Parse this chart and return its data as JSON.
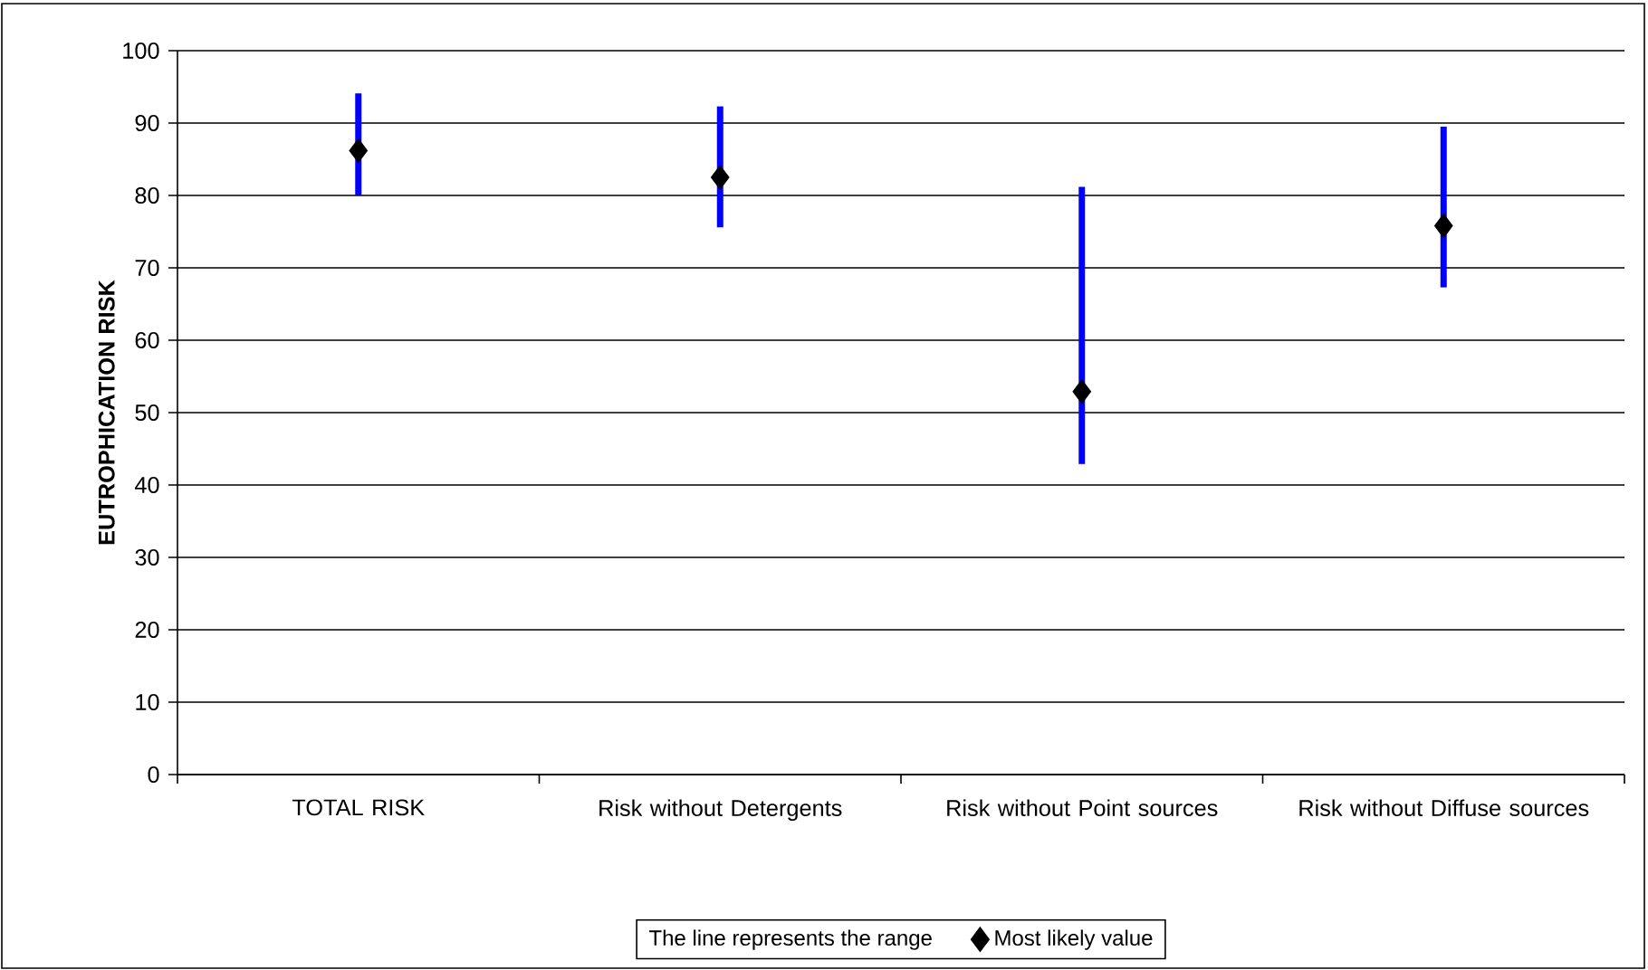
{
  "chart_data": {
    "type": "scatter",
    "ylabel": "EUTROPHICATION RISK",
    "categories": [
      "TOTAL RISK",
      "Risk without Detergents",
      "Risk without Point sources",
      "Risk without Diffuse sources"
    ],
    "series": [
      {
        "name": "Most likely value",
        "color": "#000000",
        "values": [
          86.2,
          82.5,
          52.9,
          75.8
        ],
        "errors": [
          [
            80,
            94.1
          ],
          [
            75.6,
            92.3
          ],
          [
            42.9,
            81.2
          ],
          [
            67.3,
            89.5
          ]
        ]
      }
    ],
    "legend_title": "The line represents the range",
    "ylim": [
      0,
      100
    ],
    "yticks": [
      0,
      10,
      20,
      30,
      40,
      50,
      60,
      70,
      80,
      90,
      100
    ],
    "grid": "y",
    "legend": "bottom",
    "marker": "diamond"
  }
}
